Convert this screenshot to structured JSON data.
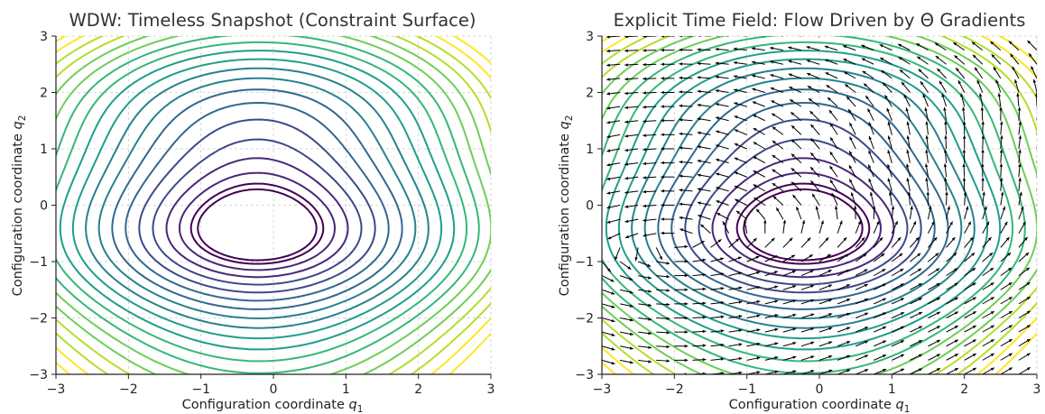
{
  "chart_data": [
    {
      "type": "contour",
      "title": "WDW: Timeless Snapshot (Constraint Surface)",
      "xlabel": "Configuration coordinate q",
      "xlabel_sub": "1",
      "ylabel": "Configuration coordinate q",
      "ylabel_sub": "2",
      "xlim": [
        -3,
        3
      ],
      "ylim": [
        -3,
        3
      ],
      "xticks": [
        "−3",
        "−2",
        "−1",
        "0",
        "1",
        "2",
        "3"
      ],
      "yticks": [
        "−3",
        "−2",
        "−1",
        "0",
        "1",
        "2",
        "3"
      ],
      "grid": true,
      "colormap": "viridis",
      "contour_levels": 20,
      "quiver": false
    },
    {
      "type": "contour",
      "title": "Explicit Time Field: Flow Driven by Θ Gradients",
      "xlabel": "Configuration coordinate q",
      "xlabel_sub": "1",
      "ylabel": "Configuration coordinate q",
      "ylabel_sub": "2",
      "xlim": [
        -3,
        3
      ],
      "ylim": [
        -3,
        3
      ],
      "xticks": [
        "−3",
        "−2",
        "−1",
        "0",
        "1",
        "2",
        "3"
      ],
      "yticks": [
        "−3",
        "−2",
        "−1",
        "0",
        "1",
        "2",
        "3"
      ],
      "grid": true,
      "colormap": "viridis",
      "contour_levels": 20,
      "quiver": true,
      "quiver_grid": 25
    }
  ],
  "colors": {
    "viridis": [
      "#440154",
      "#482878",
      "#3e4989",
      "#31688e",
      "#26828e",
      "#1f9e89",
      "#35b779",
      "#6ece58",
      "#b5de2b",
      "#fde725"
    ],
    "grid": "#cccccc",
    "arrow": "#000000"
  }
}
